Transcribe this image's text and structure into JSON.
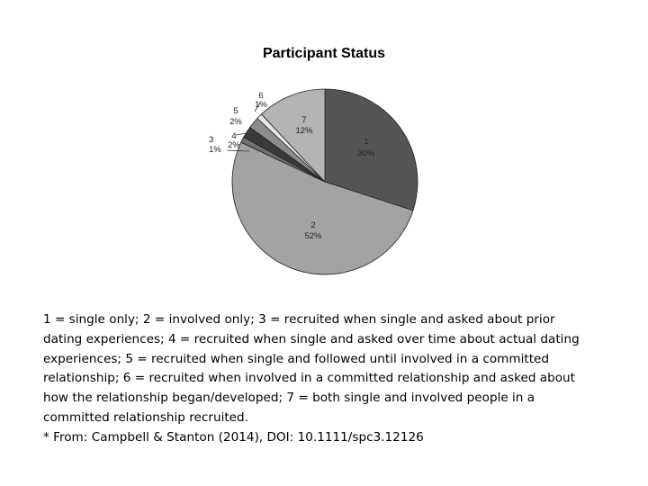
{
  "chart_data": {
    "type": "pie",
    "title": "Participant Status",
    "slices": [
      {
        "label": "1",
        "value": 30,
        "pct_label": "30%",
        "color": "#555555"
      },
      {
        "label": "2",
        "value": 52,
        "pct_label": "52%",
        "color": "#a3a3a3"
      },
      {
        "label": "3",
        "value": 1,
        "pct_label": "1%",
        "color": "#6f6f6f"
      },
      {
        "label": "4",
        "value": 2,
        "pct_label": "2%",
        "color": "#3a3a3a"
      },
      {
        "label": "5",
        "value": 2,
        "pct_label": "2%",
        "color": "#8c8c8c"
      },
      {
        "label": "6",
        "value": 1,
        "pct_label": "1%",
        "color": "#e6e6e6"
      },
      {
        "label": "7",
        "value": 12,
        "pct_label": "12%",
        "color": "#b4b4b4"
      }
    ]
  },
  "caption": {
    "lines": [
      "1 = single only; 2 = involved only; 3 = recruited when single and asked about prior",
      "dating experiences; 4 = recruited when single and asked over time about actual dating",
      "experiences; 5 = recruited when single and followed until involved in a committed",
      "relationship; 6 = recruited when involved in a committed relationship and asked about",
      "how the relationship began/developed; 7 = both single and involved people in a",
      "committed relationship recruited.",
      "* From: Campbell & Stanton (2014), DOI: 10.1111/spc3.12126"
    ]
  }
}
